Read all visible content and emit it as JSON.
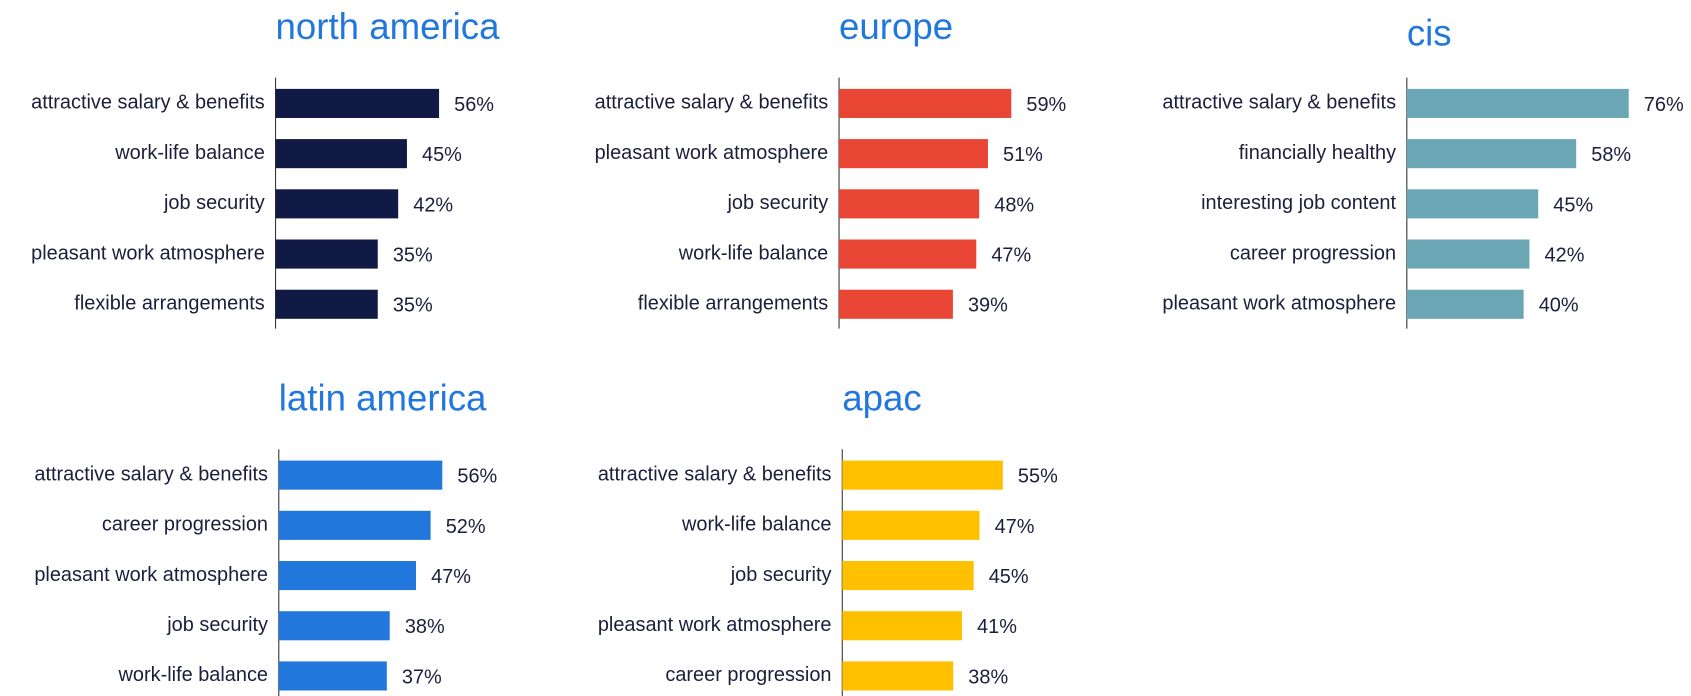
{
  "chart_data": [
    {
      "type": "bar",
      "orientation": "horizontal",
      "title": "north america",
      "color": "#111a44",
      "categories": [
        "attractive salary & benefits",
        "work-life balance",
        "job security",
        "pleasant work atmosphere",
        "flexible arrangements"
      ],
      "values": [
        56,
        45,
        42,
        35,
        35
      ],
      "value_labels": [
        "56%",
        "45%",
        "42%",
        "35%",
        "35%"
      ]
    },
    {
      "type": "bar",
      "orientation": "horizontal",
      "title": "europe",
      "color": "#e84535",
      "categories": [
        "attractive salary & benefits",
        "pleasant work atmosphere",
        "job security",
        "work-life balance",
        "flexible arrangements"
      ],
      "values": [
        59,
        51,
        48,
        47,
        39
      ],
      "value_labels": [
        "59%",
        "51%",
        "48%",
        "47%",
        "39%"
      ]
    },
    {
      "type": "bar",
      "orientation": "horizontal",
      "title": "cis",
      "color": "#6aa6b4",
      "categories": [
        "attractive salary & benefits",
        "financially healthy",
        "interesting job content",
        "career progression",
        "pleasant work atmosphere"
      ],
      "values": [
        76,
        58,
        45,
        42,
        40
      ],
      "value_labels": [
        "76%",
        "58%",
        "45%",
        "42%",
        "40%"
      ]
    },
    {
      "type": "bar",
      "orientation": "horizontal",
      "title": "latin america",
      "color": "#2277dd",
      "categories": [
        "attractive salary & benefits",
        "career progression",
        "pleasant work atmosphere",
        "job security",
        "work-life balance"
      ],
      "values": [
        56,
        52,
        47,
        38,
        37
      ],
      "value_labels": [
        "56%",
        "52%",
        "47%",
        "38%",
        "37%"
      ]
    },
    {
      "type": "bar",
      "orientation": "horizontal",
      "title": "apac",
      "color": "#ffc000",
      "categories": [
        "attractive salary & benefits",
        "work-life balance",
        "job security",
        "pleasant work atmosphere",
        "career progression"
      ],
      "values": [
        55,
        47,
        45,
        41,
        38
      ],
      "value_labels": [
        "55%",
        "47%",
        "45%",
        "41%",
        "38%"
      ]
    }
  ]
}
